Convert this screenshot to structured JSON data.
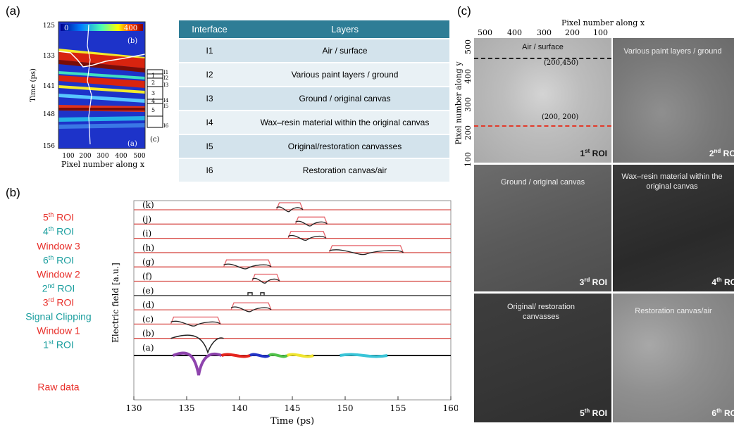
{
  "panel_labels": {
    "a": "(a)",
    "b": "(b)",
    "c": "(c)"
  },
  "table": {
    "headers": [
      "Interface",
      "Layers"
    ],
    "rows": [
      {
        "interface": "I1",
        "layers": "Air / surface"
      },
      {
        "interface": "I2",
        "layers": "Various paint layers / ground"
      },
      {
        "interface": "I3",
        "layers": "Ground / original canvas"
      },
      {
        "interface": "I4",
        "layers": "Wax–resin material within the original canvas"
      },
      {
        "interface": "I5",
        "layers": "Original/restoration canvasses"
      },
      {
        "interface": "I6",
        "layers": "Restoration canvas/air"
      }
    ]
  },
  "panel_a": {
    "ylabel": "Time (ps)",
    "xlabel": "Pixel number along x",
    "yticks": [
      "125",
      "133",
      "141",
      "148",
      "156"
    ],
    "xticks": [
      "100",
      "200",
      "300",
      "400",
      "500"
    ],
    "colorbar": {
      "min": "0",
      "max": "400"
    },
    "inner_labels": {
      "b": "(b)",
      "a": "(a)",
      "c": "(c)"
    },
    "interface_marks": [
      "I1",
      "I2",
      "I3",
      "I4",
      "I5",
      "I6"
    ],
    "layer_numbers": [
      "1",
      "2",
      "3",
      "4",
      "5"
    ]
  },
  "roi_list": {
    "items": [
      {
        "ordinal": "5",
        "sup": "th",
        "text": " ROI",
        "color": "#e8302b"
      },
      {
        "ordinal": "4",
        "sup": "th",
        "text": " ROI",
        "color": "#1a9e9e"
      },
      {
        "ordinal": "",
        "sup": "",
        "text": "Window 3",
        "color": "#e8302b"
      },
      {
        "ordinal": "6",
        "sup": "th",
        "text": " ROI",
        "color": "#1a9e9e"
      },
      {
        "ordinal": "",
        "sup": "",
        "text": "Window 2",
        "color": "#e8302b"
      },
      {
        "ordinal": "2",
        "sup": "nd",
        "text": " ROI",
        "color": "#1a9e9e"
      },
      {
        "ordinal": "3",
        "sup": "rd",
        "text": " ROI",
        "color": "#e8302b"
      },
      {
        "ordinal": "",
        "sup": "",
        "text": "Signal Clipping",
        "color": "#1a9e9e"
      },
      {
        "ordinal": "",
        "sup": "",
        "text": "Window 1",
        "color": "#e8302b"
      },
      {
        "ordinal": "1",
        "sup": "st",
        "text": " ROI",
        "color": "#1a9e9e"
      },
      {
        "ordinal": "",
        "sup": "",
        "text": "Raw data",
        "color": "#e8302b"
      }
    ]
  },
  "chart_data": {
    "type": "line",
    "xlabel": "Time (ps)",
    "ylabel": "Electric field [a.u.]",
    "xlim": [
      130,
      160
    ],
    "xticks": [
      "130",
      "135",
      "140",
      "145",
      "150",
      "155",
      "160"
    ],
    "trace_labels": [
      "(k)",
      "(j)",
      "(i)",
      "(h)",
      "(g)",
      "(f)",
      "(e)",
      "(d)",
      "(c)",
      "(b)",
      "(a)"
    ],
    "windows": [
      {
        "trace": "(k)",
        "t_start": 143.5,
        "t_end": 146
      },
      {
        "trace": "(j)",
        "t_start": 145.3,
        "t_end": 148.3
      },
      {
        "trace": "(i)",
        "t_start": 144.6,
        "t_end": 148.2
      },
      {
        "trace": "(h)",
        "t_start": 148.5,
        "t_end": 155.5
      },
      {
        "trace": "(g)",
        "t_start": 138.5,
        "t_end": 143
      },
      {
        "trace": "(f)",
        "t_start": 141.2,
        "t_end": 143.8
      },
      {
        "trace": "(d)",
        "t_start": 139.2,
        "t_end": 143
      },
      {
        "trace": "(c)",
        "t_start": 133.5,
        "t_end": 138.2
      }
    ],
    "raw_segments_colors": [
      "#8e44ad",
      "#e5261f",
      "#2334c8",
      "#50c24a",
      "#f0e531",
      "#3ac5d8"
    ],
    "grid": false
  },
  "panel_c": {
    "xlabel": "Pixel number along x",
    "xticks": [
      "500",
      "400",
      "300",
      "200",
      "100"
    ],
    "ylabel": "Pixel number along y",
    "yticks": [
      "500",
      "400",
      "300",
      "200",
      "100"
    ],
    "points": [
      {
        "label": "(200,450)",
        "color": "#e8302b"
      },
      {
        "label": "(200, 200)",
        "color": "#222222"
      }
    ],
    "tiles": [
      {
        "label": "Air / surface",
        "roi_num": "1",
        "roi_sup": "st",
        "roi_text": " ROI"
      },
      {
        "label": "Various paint layers / ground",
        "roi_num": "2",
        "roi_sup": "nd",
        "roi_text": " ROI"
      },
      {
        "label": "Ground / original canvas",
        "roi_num": "3",
        "roi_sup": "rd",
        "roi_text": " ROI"
      },
      {
        "label": "Wax–resin material within the original canvas",
        "roi_num": "4",
        "roi_sup": "th",
        "roi_text": " RO"
      },
      {
        "label": "Original/ restoration canvasses",
        "roi_num": "5",
        "roi_sup": "th",
        "roi_text": " ROI"
      },
      {
        "label": "Restoration canvas/air",
        "roi_num": "6",
        "roi_sup": "th",
        "roi_text": " RO"
      }
    ]
  }
}
